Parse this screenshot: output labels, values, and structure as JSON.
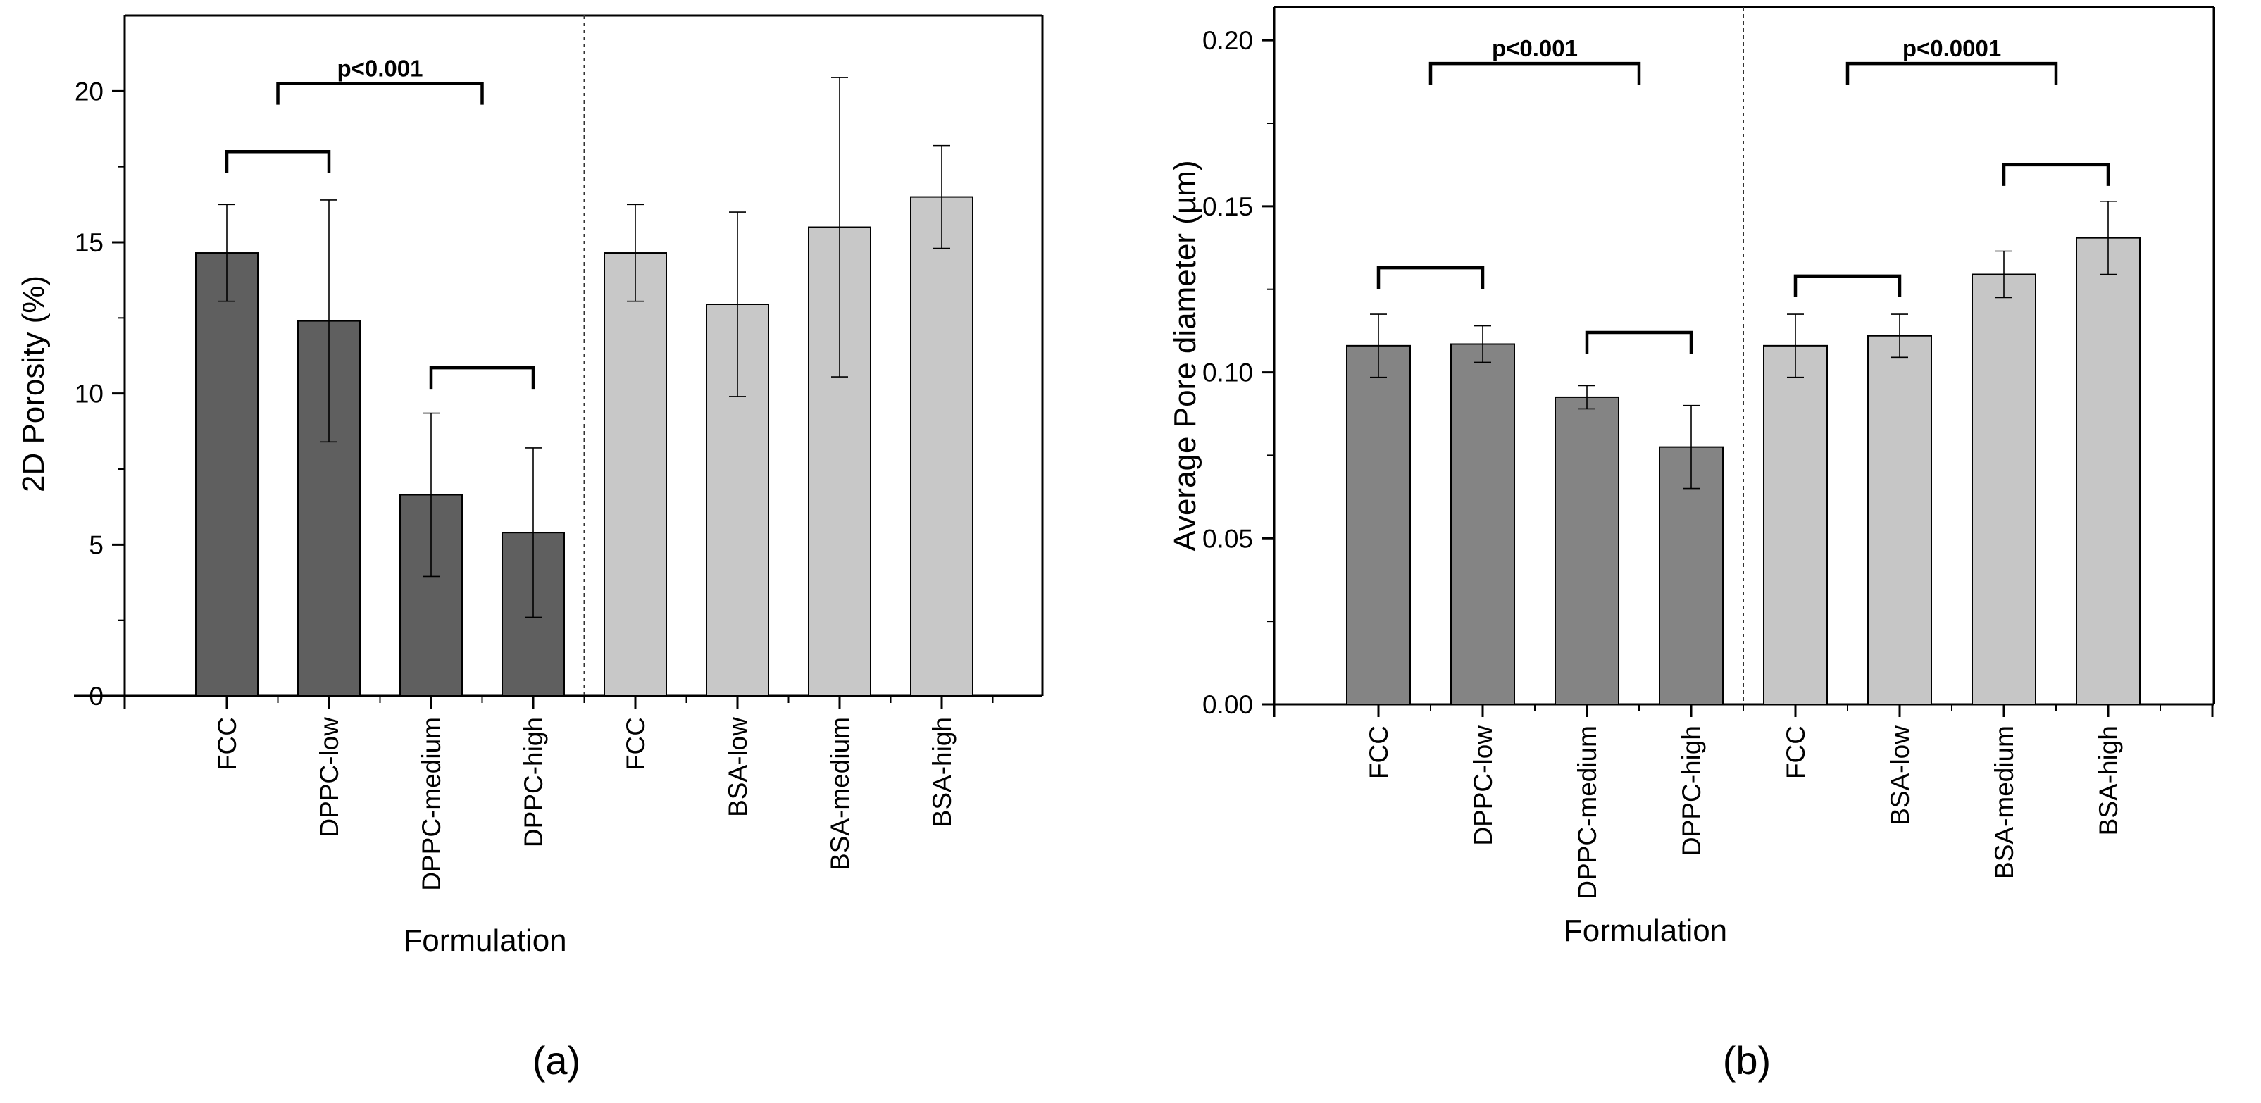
{
  "chart_data": [
    {
      "type": "bar",
      "panel_label": "(a)",
      "xlabel": "Formulation",
      "ylabel": "2D Porosity (%)",
      "ylim": [
        0,
        22.5
      ],
      "yticks": [
        0,
        5,
        10,
        15,
        20
      ],
      "ytick_labels": [
        "0",
        "5",
        "10",
        "15",
        "20"
      ],
      "categories": [
        "FCC",
        "DPPC-low",
        "DPPC-medium",
        "DPPC-high",
        "FCC",
        "BSA-low",
        "BSA-medium",
        "BSA-high"
      ],
      "values": [
        14.65,
        12.4,
        6.65,
        5.4,
        14.65,
        12.95,
        15.5,
        16.5
      ],
      "errors": [
        1.6,
        4.0,
        2.7,
        2.8,
        1.6,
        3.05,
        4.95,
        1.7
      ],
      "bar_colors": [
        "#5f5f5f",
        "#5f5f5f",
        "#5f5f5f",
        "#5f5f5f",
        "#c8c8c8",
        "#c8c8c8",
        "#c8c8c8",
        "#c8c8c8"
      ],
      "groups": [
        "DPPC",
        "DPPC",
        "DPPC",
        "DPPC",
        "BSA",
        "BSA",
        "BSA",
        "BSA"
      ],
      "divider_after_index": 3,
      "brackets": [
        {
          "from": 0,
          "to": 1,
          "level": 18.0,
          "label": ""
        },
        {
          "from": 2,
          "to": 3,
          "level": 10.85,
          "label": ""
        },
        {
          "from": 0.5,
          "to": 2.5,
          "level": 20.25,
          "label": "p<0.001"
        }
      ]
    },
    {
      "type": "bar",
      "panel_label": "(b)",
      "xlabel": "Formulation",
      "ylabel": "Average Pore diameter (µm)",
      "ylim": [
        0,
        0.21
      ],
      "yticks": [
        0,
        0.05,
        0.1,
        0.15,
        0.2
      ],
      "ytick_labels": [
        "0.00",
        "0.05",
        "0.10",
        "0.15",
        "0.20"
      ],
      "categories": [
        "FCC",
        "DPPC-low",
        "DPPC-medium",
        "DPPC-high",
        "FCC",
        "BSA-low",
        "BSA-medium",
        "BSA-high"
      ],
      "values": [
        0.108,
        0.1085,
        0.0925,
        0.0775,
        0.108,
        0.111,
        0.1295,
        0.1405
      ],
      "errors": [
        0.0095,
        0.0055,
        0.0035,
        0.0125,
        0.0095,
        0.0065,
        0.007,
        0.011
      ],
      "bar_colors": [
        "#848484",
        "#848484",
        "#848484",
        "#848484",
        "#c6c6c6",
        "#c6c6c6",
        "#c6c6c6",
        "#c6c6c6"
      ],
      "groups": [
        "DPPC",
        "DPPC",
        "DPPC",
        "DPPC",
        "BSA",
        "BSA",
        "BSA",
        "BSA"
      ],
      "divider_after_index": 3,
      "brackets": [
        {
          "from": 0,
          "to": 1,
          "level": 0.1315,
          "label": ""
        },
        {
          "from": 2,
          "to": 3,
          "level": 0.112,
          "label": ""
        },
        {
          "from": 0.5,
          "to": 2.5,
          "level": 0.193,
          "label": "p<0.001"
        },
        {
          "from": 4,
          "to": 5,
          "level": 0.129,
          "label": ""
        },
        {
          "from": 6,
          "to": 7,
          "level": 0.1625,
          "label": ""
        },
        {
          "from": 4.5,
          "to": 6.5,
          "level": 0.193,
          "label": "p<0.0001"
        }
      ]
    }
  ]
}
